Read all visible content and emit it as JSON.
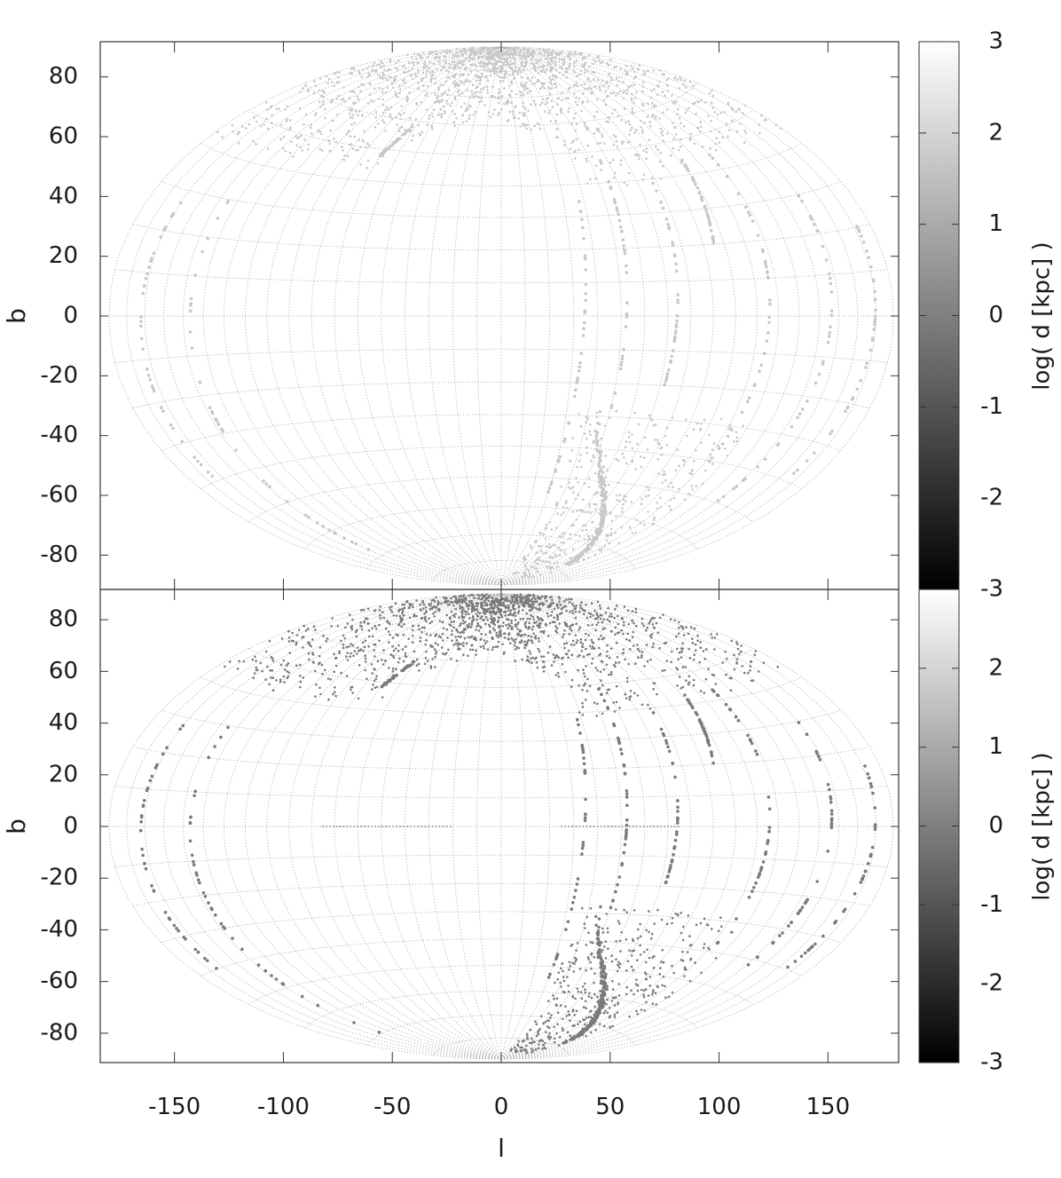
{
  "chart_data": [
    {
      "type": "scatter",
      "panel": "top",
      "xlabel": "",
      "ylabel": "b",
      "xlim": [
        -185,
        185
      ],
      "ylim": [
        -92,
        92
      ],
      "yticks": [
        80,
        60,
        40,
        20,
        0,
        -20,
        -40,
        -60,
        -80
      ],
      "ytick_labels": [
        "80",
        "60",
        "40",
        "20",
        "0",
        "-20",
        "-40",
        "-60",
        "-80"
      ],
      "xticks": [
        -150,
        -100,
        -50,
        0,
        50,
        100,
        150
      ],
      "projection": "hammer-aitoff",
      "grid": true,
      "colorbar": {
        "label": "log( d [kpc] )",
        "range": [
          -3,
          3
        ],
        "ticks": [
          3,
          2,
          1,
          0,
          -1,
          -2,
          -3
        ],
        "tick_labels": [
          "3",
          "2",
          "1",
          "0",
          "-1",
          "-2",
          "-3"
        ],
        "colormap": "grayscale",
        "low_color": "#000000",
        "high_color": "#ffffff"
      },
      "point_color": "#c8c8c8",
      "point_log_d": 1.2,
      "regions": [
        {
          "name": "northern-cap",
          "l_range": [
            -180,
            180
          ],
          "b_range": [
            40,
            88
          ]
        },
        {
          "name": "southern-fan",
          "l_range": [
            30,
            120
          ],
          "b_range": [
            -88,
            -25
          ]
        }
      ],
      "stripes": [
        {
          "l": [
            -165,
            -160
          ],
          "b": [
            -40,
            28
          ]
        },
        {
          "l": [
            -140,
            -135
          ],
          "b": [
            -70,
            30
          ]
        },
        {
          "l": [
            -70,
            -62
          ],
          "b": [
            48,
            58
          ]
        },
        {
          "l": [
            30,
            38
          ],
          "b": [
            -55,
            40
          ]
        },
        {
          "l": [
            50,
            56
          ],
          "b": [
            -30,
            48
          ]
        },
        {
          "l": [
            72,
            78
          ],
          "b": [
            -20,
            40
          ]
        },
        {
          "l": [
            95,
            102
          ],
          "b": [
            20,
            45
          ]
        },
        {
          "l": [
            112,
            120
          ],
          "b": [
            -40,
            45
          ]
        },
        {
          "l": [
            140,
            150
          ],
          "b": [
            -50,
            30
          ]
        },
        {
          "l": [
            165,
            172
          ],
          "b": [
            -40,
            20
          ]
        }
      ]
    },
    {
      "type": "scatter",
      "panel": "bottom",
      "xlabel": "l",
      "ylabel": "b",
      "xlim": [
        -185,
        185
      ],
      "ylim": [
        -92,
        92
      ],
      "yticks": [
        80,
        60,
        40,
        20,
        0,
        -20,
        -40,
        -60,
        -80
      ],
      "ytick_labels": [
        "80",
        "60",
        "40",
        "20",
        "0",
        "-20",
        "-40",
        "-60",
        "-80"
      ],
      "xticks": [
        -150,
        -100,
        -50,
        0,
        50,
        100,
        150
      ],
      "xtick_labels": [
        "-150",
        "-100",
        "-50",
        "0",
        "50",
        "100",
        "150"
      ],
      "projection": "hammer-aitoff",
      "grid": true,
      "colorbar": {
        "label": "log( d [kpc] )",
        "range": [
          -3,
          3
        ],
        "ticks": [
          2,
          1,
          0,
          -1,
          -2,
          -3
        ],
        "tick_labels": [
          "2",
          "1",
          "0",
          "-1",
          "-2",
          "-3"
        ],
        "colormap": "grayscale",
        "low_color": "#000000",
        "high_color": "#ffffff"
      },
      "point_color": "#7a7a7a",
      "point_log_d": -0.3,
      "regions": [
        {
          "name": "northern-cap",
          "l_range": [
            -180,
            180
          ],
          "b_range": [
            40,
            88
          ]
        },
        {
          "name": "southern-fan",
          "l_range": [
            30,
            120
          ],
          "b_range": [
            -88,
            -25
          ]
        }
      ],
      "stripes": [
        {
          "l": [
            -165,
            -160
          ],
          "b": [
            -40,
            28
          ]
        },
        {
          "l": [
            -140,
            -135
          ],
          "b": [
            -70,
            30
          ]
        },
        {
          "l": [
            -70,
            -62
          ],
          "b": [
            48,
            58
          ]
        },
        {
          "l": [
            30,
            38
          ],
          "b": [
            -55,
            40
          ]
        },
        {
          "l": [
            50,
            56
          ],
          "b": [
            -30,
            48
          ]
        },
        {
          "l": [
            72,
            78
          ],
          "b": [
            -20,
            40
          ]
        },
        {
          "l": [
            95,
            102
          ],
          "b": [
            20,
            45
          ]
        },
        {
          "l": [
            112,
            120
          ],
          "b": [
            -40,
            45
          ]
        },
        {
          "l": [
            140,
            150
          ],
          "b": [
            -50,
            30
          ]
        },
        {
          "l": [
            165,
            172
          ],
          "b": [
            -40,
            20
          ]
        }
      ]
    }
  ]
}
